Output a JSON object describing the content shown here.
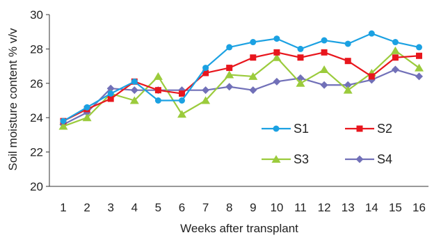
{
  "chart_data": {
    "type": "line",
    "title": "",
    "xlabel": "Weeks after transplant",
    "ylabel": "Soil moisture content % v/v",
    "x": [
      1,
      2,
      3,
      4,
      5,
      6,
      7,
      8,
      9,
      10,
      11,
      12,
      13,
      14,
      15,
      16
    ],
    "ylim": [
      20,
      30
    ],
    "yticks": [
      20,
      22,
      24,
      26,
      28,
      30
    ],
    "grid": false,
    "legend_position": "right-center",
    "series": [
      {
        "name": "S1",
        "color": "#1BA1E2",
        "marker": "circle",
        "values": [
          23.8,
          24.6,
          25.4,
          26.1,
          25.0,
          25.0,
          26.9,
          28.1,
          28.4,
          28.6,
          28.0,
          28.5,
          28.3,
          28.9,
          28.4,
          28.1
        ]
      },
      {
        "name": "S2",
        "color": "#E8161D",
        "marker": "square",
        "values": [
          23.8,
          24.5,
          25.1,
          26.1,
          25.6,
          25.4,
          26.6,
          26.9,
          27.5,
          27.8,
          27.5,
          27.8,
          27.3,
          26.4,
          27.5,
          27.6
        ]
      },
      {
        "name": "S3",
        "color": "#9BCB3C",
        "marker": "triangle",
        "values": [
          23.5,
          24.0,
          25.4,
          25.0,
          26.4,
          24.2,
          25.0,
          26.5,
          26.4,
          27.5,
          26.0,
          26.8,
          25.6,
          26.6,
          27.9,
          26.9
        ]
      },
      {
        "name": "S4",
        "color": "#7170B8",
        "marker": "diamond",
        "values": [
          23.6,
          24.3,
          25.7,
          25.6,
          25.6,
          25.6,
          25.6,
          25.8,
          25.6,
          26.1,
          26.3,
          25.9,
          25.9,
          26.2,
          26.8,
          26.4
        ]
      }
    ]
  }
}
